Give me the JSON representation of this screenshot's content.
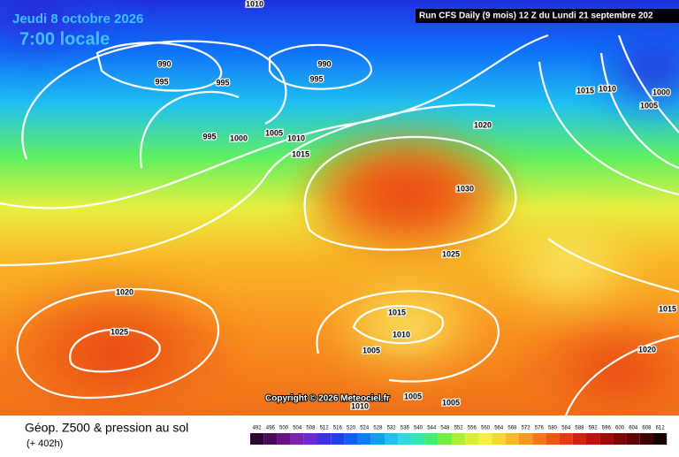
{
  "header": {
    "date": "Jeudi 8 octobre 2026",
    "time": "7:00 locale",
    "run": "Run CFS Daily (9 mois) 12 Z du Lundi 21 septembre 202"
  },
  "copyright": "Copyright © 2026 Meteociel.fr",
  "footer": {
    "title": "Géop. Z500 & pression au sol",
    "lead": "(+ 402h)"
  },
  "isobar_labels": [
    1010,
    990,
    990,
    995,
    995,
    995,
    995,
    1000,
    1005,
    1010,
    1015,
    1020,
    1015,
    1010,
    1000,
    1005,
    1030,
    1025,
    1020,
    1025,
    1015,
    1010,
    1005,
    1005,
    1010,
    1005,
    1020,
    1015
  ],
  "legend": {
    "values": [
      492,
      496,
      500,
      504,
      508,
      512,
      516,
      520,
      524,
      528,
      532,
      536,
      540,
      544,
      548,
      552,
      556,
      560,
      564,
      568,
      572,
      576,
      580,
      584,
      588,
      592,
      596,
      600,
      604,
      608,
      612
    ],
    "colors": [
      "#2a0630",
      "#4a0c5a",
      "#6a1484",
      "#7e1fb0",
      "#6a2ad8",
      "#4030e8",
      "#2040f0",
      "#1060f8",
      "#0a80f8",
      "#10a0f0",
      "#20c0f0",
      "#30d8e0",
      "#30e8b0",
      "#40f070",
      "#70f040",
      "#a8f030",
      "#d8f030",
      "#f8f040",
      "#f8d830",
      "#f8b828",
      "#f89820",
      "#f87818",
      "#f05810",
      "#e83810",
      "#d82010",
      "#c01010",
      "#a00808",
      "#800404",
      "#600202",
      "#400000",
      "#180000"
    ]
  }
}
